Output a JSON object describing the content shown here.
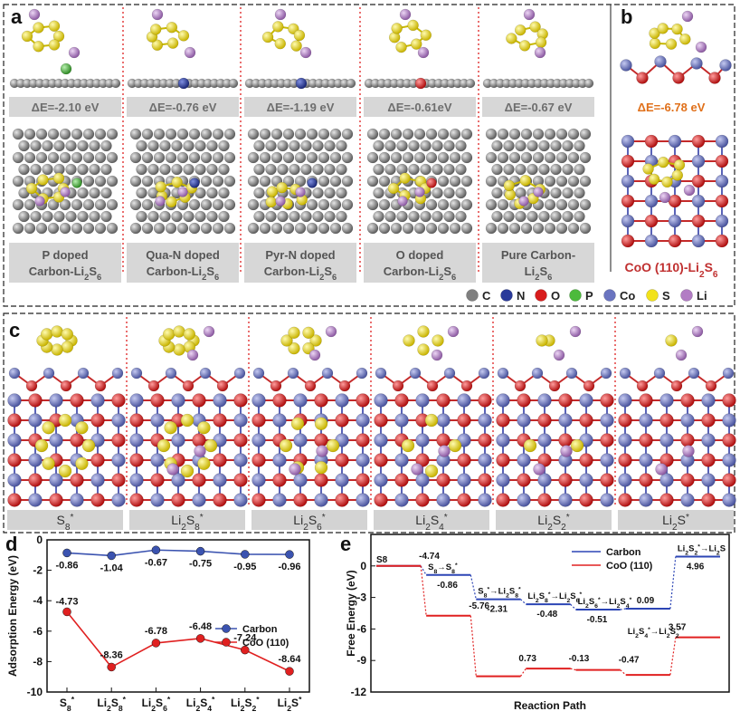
{
  "panels": {
    "a": {
      "letter": "a",
      "columns": [
        {
          "energy": "ΔE=-2.10 eV",
          "dopant": "P",
          "label": [
            "P doped",
            "Carbon-Li2S6"
          ]
        },
        {
          "energy": "ΔE=-0.76 eV",
          "dopant": "N",
          "label": [
            "Qua-N doped",
            "Carbon-Li2S6"
          ]
        },
        {
          "energy": "ΔE=-1.19 eV",
          "dopant": "N",
          "label": [
            "Pyr-N doped",
            "Carbon-Li2S6"
          ]
        },
        {
          "energy": "ΔE=-0.61eV",
          "dopant": "O",
          "label": [
            "O doped",
            "Carbon-Li2S6"
          ]
        },
        {
          "energy": "ΔE=-0.67 eV",
          "dopant": "",
          "label": [
            "Pure Carbon-",
            "Li2S6"
          ]
        }
      ]
    },
    "b": {
      "letter": "b",
      "energy": "ΔE=-6.78 eV",
      "label": "CoO (110)-Li2S6"
    },
    "legend": [
      {
        "symbol": "C",
        "color": "#7f7f7f"
      },
      {
        "symbol": "N",
        "color": "#2a3a9a"
      },
      {
        "symbol": "O",
        "color": "#d81c1c"
      },
      {
        "symbol": "P",
        "color": "#4cba3c"
      },
      {
        "symbol": "Co",
        "color": "#6a74c0"
      },
      {
        "symbol": "S",
        "color": "#f2e21a"
      },
      {
        "symbol": "Li",
        "color": "#b27cc4"
      }
    ],
    "c": {
      "letter": "c",
      "labels": [
        "S8*",
        "Li2S8*",
        "Li2S6*",
        "Li2S4*",
        "Li2S2*",
        "Li2S*"
      ]
    }
  },
  "chart_data": [
    {
      "panel": "d",
      "type": "line",
      "ylabel": "Adsorption Energy (eV)",
      "categories": [
        "S8*",
        "Li2S8*",
        "Li2S6*",
        "Li2S4*",
        "Li2S2*",
        "Li2S*"
      ],
      "ylim": [
        -10,
        0
      ],
      "yticks": [
        0,
        -2,
        -4,
        -6,
        -8,
        -10
      ],
      "series": [
        {
          "name": "Carbon",
          "color": "#3b53b0",
          "values": [
            -0.86,
            -1.04,
            -0.67,
            -0.75,
            -0.95,
            -0.96
          ],
          "labels": [
            "-0.86",
            "-1.04",
            "-0.67",
            "-0.75",
            "-0.95",
            "-0.96"
          ]
        },
        {
          "name": "CoO (110)",
          "color": "#e02020",
          "values": [
            -4.73,
            -8.36,
            -6.78,
            -6.48,
            -7.24,
            -8.64
          ],
          "labels": [
            "-4.73",
            "-8.36",
            "-6.78",
            "-6.48",
            "-7.24",
            "-8.64"
          ]
        }
      ]
    },
    {
      "panel": "e",
      "type": "line",
      "xlabel": "Reaction Path",
      "ylabel": "Free Energy (eV)",
      "ylim": [
        -12,
        3
      ],
      "yticks": [
        0,
        -3,
        -6,
        -9,
        -12
      ],
      "start_label": "S8",
      "series": [
        {
          "name": "Carbon",
          "color": "#2c45b5",
          "levels": [
            0,
            -0.86,
            -3.17,
            -3.65,
            -4.16,
            -4.07,
            0.89
          ]
        },
        {
          "name": "CoO (110)",
          "color": "#e02020",
          "levels": [
            0,
            -4.74,
            -10.5,
            -9.77,
            -9.9,
            -10.37,
            -6.8
          ]
        }
      ],
      "step_labels": [
        "S8→S8*",
        "S8*→Li2S8*",
        "Li2S8*→Li2S6*",
        "Li2S6*→Li2S4*",
        "Li2S4*→Li2S2*",
        "Li2S2*→Li2S"
      ],
      "carbon_deltas": [
        "-0.86",
        "-2.31",
        "-0.48",
        "-0.51",
        "0.09",
        "4.96"
      ],
      "coo_deltas": [
        "-4.74",
        "-5.76",
        "0.73",
        "-0.13",
        "-0.47",
        "3.57"
      ]
    }
  ]
}
